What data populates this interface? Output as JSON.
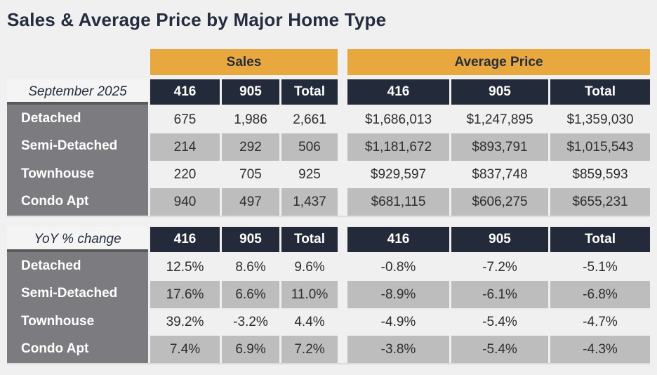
{
  "title": "Sales & Average Price by Major Home Type",
  "group_headers": {
    "sales": "Sales",
    "average_price": "Average Price"
  },
  "sections": [
    {
      "period_label": "September 2025",
      "col_headers": [
        "416",
        "905",
        "Total",
        "416",
        "905",
        "Total"
      ],
      "rows": [
        {
          "label": "Detached",
          "cells": [
            "675",
            "1,986",
            "2,661",
            "$1,686,013",
            "$1,247,895",
            "$1,359,030"
          ]
        },
        {
          "label": "Semi-Detached",
          "cells": [
            "214",
            "292",
            "506",
            "$1,181,672",
            "$893,791",
            "$1,015,543"
          ]
        },
        {
          "label": "Townhouse",
          "cells": [
            "220",
            "705",
            "925",
            "$929,597",
            "$837,748",
            "$859,593"
          ]
        },
        {
          "label": "Condo Apt",
          "cells": [
            "940",
            "497",
            "1,437",
            "$681,115",
            "$606,275",
            "$655,231"
          ]
        }
      ]
    },
    {
      "period_label": "YoY % change",
      "col_headers": [
        "416",
        "905",
        "Total",
        "416",
        "905",
        "Total"
      ],
      "rows": [
        {
          "label": "Detached",
          "cells": [
            "12.5%",
            "8.6%",
            "9.6%",
            "-0.8%",
            "-7.2%",
            "-5.1%"
          ]
        },
        {
          "label": "Semi-Detached",
          "cells": [
            "17.6%",
            "6.6%",
            "11.0%",
            "-8.9%",
            "-6.1%",
            "-6.8%"
          ]
        },
        {
          "label": "Townhouse",
          "cells": [
            "39.2%",
            "-3.2%",
            "4.4%",
            "-4.9%",
            "-5.4%",
            "-4.7%"
          ]
        },
        {
          "label": "Condo Apt",
          "cells": [
            "7.4%",
            "6.9%",
            "7.2%",
            "-3.8%",
            "-5.4%",
            "-4.3%"
          ]
        }
      ]
    }
  ],
  "colors": {
    "page_background": "#F0F0F1",
    "gold_header": "#E9A83E",
    "navy_header": "#232B3A",
    "label_column": "#7C7C80",
    "label_top_border": "#59595C",
    "row_light": "#F1F0F0",
    "row_dark": "#BDBDBD",
    "title_text": "#232D3E"
  }
}
